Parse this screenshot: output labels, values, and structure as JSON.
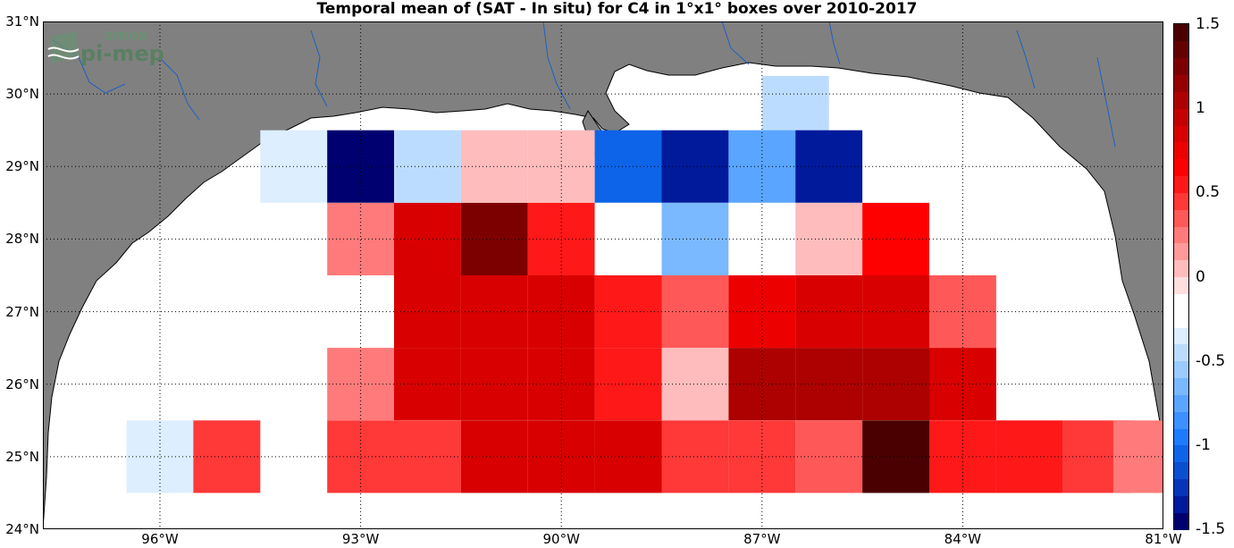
{
  "title": "Temporal mean of (SAT - In situ) for C4 in 1°x1° boxes over 2010-2017",
  "logo": {
    "line1": "smos",
    "line2": "pi-mep"
  },
  "colors": {
    "land": "#808080",
    "coast": "#000000",
    "river": "#1f5fbf",
    "ocean": "#ffffff",
    "grid": "#000000"
  },
  "map": {
    "lon_range": [
      -97.75,
      -81
    ],
    "lat_range": [
      24,
      31
    ],
    "y_ticks": [
      {
        "lat": 31,
        "label": "31°N"
      },
      {
        "lat": 30,
        "label": "30°N"
      },
      {
        "lat": 29,
        "label": "29°N"
      },
      {
        "lat": 28,
        "label": "28°N"
      },
      {
        "lat": 27,
        "label": "27°N"
      },
      {
        "lat": 26,
        "label": "26°N"
      },
      {
        "lat": 25,
        "label": "25°N"
      },
      {
        "lat": 24,
        "label": "24°N"
      }
    ],
    "x_ticks": [
      {
        "lon": -96,
        "label": "96°W"
      },
      {
        "lon": -93,
        "label": "93°W"
      },
      {
        "lon": -90,
        "label": "90°W"
      },
      {
        "lon": -87,
        "label": "87°W"
      },
      {
        "lon": -84,
        "label": "84°W"
      },
      {
        "lon": -81,
        "label": "81°W"
      }
    ]
  },
  "chart_data": {
    "type": "heatmap",
    "title": "Temporal mean of (SAT - In situ) for C4 in 1°x1° boxes over 2010-2017",
    "xlabel": "",
    "ylabel": "",
    "cell_size_deg": 1,
    "color_range": [
      -1.5,
      1.5
    ],
    "cells": [
      {
        "lon": -87.5,
        "lat": 29.75,
        "value": -0.15
      },
      {
        "lon": -86.5,
        "lat": 29.75,
        "value": -0.5
      },
      {
        "lon": -94.0,
        "lat": 29.0,
        "value": -0.4
      },
      {
        "lon": -93.0,
        "lat": 29.0,
        "value": -1.45
      },
      {
        "lon": -92.0,
        "lat": 29.0,
        "value": -0.45
      },
      {
        "lon": -91.0,
        "lat": 29.0,
        "value": 0.0
      },
      {
        "lon": -90.0,
        "lat": 29.0,
        "value": 0.0
      },
      {
        "lon": -89.0,
        "lat": 29.0,
        "value": -1.05
      },
      {
        "lon": -88.0,
        "lat": 29.0,
        "value": -1.4
      },
      {
        "lon": -87.0,
        "lat": 29.0,
        "value": -0.75
      },
      {
        "lon": -86.0,
        "lat": 29.0,
        "value": -1.3
      },
      {
        "lon": -95.0,
        "lat": 28.0,
        "value": -0.2
      },
      {
        "lon": -94.0,
        "lat": 28.0,
        "value": -0.2
      },
      {
        "lon": -93.0,
        "lat": 28.0,
        "value": 0.2
      },
      {
        "lon": -92.0,
        "lat": 28.0,
        "value": 0.8
      },
      {
        "lon": -91.0,
        "lat": 28.0,
        "value": 1.25
      },
      {
        "lon": -90.0,
        "lat": 28.0,
        "value": 0.5
      },
      {
        "lon": -89.0,
        "lat": 28.0,
        "value": -0.15
      },
      {
        "lon": -88.0,
        "lat": 28.0,
        "value": -0.65
      },
      {
        "lon": -87.0,
        "lat": 28.0,
        "value": -0.25
      },
      {
        "lon": -86.0,
        "lat": 28.0,
        "value": 0.0
      },
      {
        "lon": -85.0,
        "lat": 28.0,
        "value": 0.6
      },
      {
        "lon": -92.0,
        "lat": 27.0,
        "value": 0.9
      },
      {
        "lon": -91.0,
        "lat": 27.0,
        "value": 0.9
      },
      {
        "lon": -90.0,
        "lat": 27.0,
        "value": 0.8
      },
      {
        "lon": -89.0,
        "lat": 27.0,
        "value": 0.5
      },
      {
        "lon": -88.0,
        "lat": 27.0,
        "value": 0.3
      },
      {
        "lon": -87.0,
        "lat": 27.0,
        "value": 0.7
      },
      {
        "lon": -86.0,
        "lat": 27.0,
        "value": 0.8
      },
      {
        "lon": -85.0,
        "lat": 27.0,
        "value": 0.8
      },
      {
        "lon": -84.0,
        "lat": 27.0,
        "value": 0.3
      },
      {
        "lon": -93.0,
        "lat": 26.0,
        "value": 0.2
      },
      {
        "lon": -92.0,
        "lat": 26.0,
        "value": 0.9
      },
      {
        "lon": -91.0,
        "lat": 26.0,
        "value": 0.8
      },
      {
        "lon": -90.0,
        "lat": 26.0,
        "value": 0.8
      },
      {
        "lon": -89.0,
        "lat": 26.0,
        "value": 0.5
      },
      {
        "lon": -88.0,
        "lat": 26.0,
        "value": 0.0
      },
      {
        "lon": -87.0,
        "lat": 26.0,
        "value": 1.0
      },
      {
        "lon": -86.0,
        "lat": 26.0,
        "value": 1.05
      },
      {
        "lon": -85.0,
        "lat": 26.0,
        "value": 1.05
      },
      {
        "lon": -84.0,
        "lat": 26.0,
        "value": 0.8
      },
      {
        "lon": -96.0,
        "lat": 25.0,
        "value": -0.4
      },
      {
        "lon": -95.0,
        "lat": 25.0,
        "value": 0.45
      },
      {
        "lon": -93.0,
        "lat": 25.0,
        "value": 0.45
      },
      {
        "lon": -92.0,
        "lat": 25.0,
        "value": 0.45
      },
      {
        "lon": -91.0,
        "lat": 25.0,
        "value": 0.9
      },
      {
        "lon": -90.0,
        "lat": 25.0,
        "value": 0.9
      },
      {
        "lon": -89.0,
        "lat": 25.0,
        "value": 0.9
      },
      {
        "lon": -88.0,
        "lat": 25.0,
        "value": 0.45
      },
      {
        "lon": -87.0,
        "lat": 25.0,
        "value": 0.45
      },
      {
        "lon": -86.0,
        "lat": 25.0,
        "value": 0.3
      },
      {
        "lon": -85.0,
        "lat": 25.0,
        "value": 1.45
      },
      {
        "lon": -84.0,
        "lat": 25.0,
        "value": 0.55
      },
      {
        "lon": -83.0,
        "lat": 25.0,
        "value": 0.55
      },
      {
        "lon": -82.0,
        "lat": 25.0,
        "value": 0.45
      },
      {
        "lon": -81.25,
        "lat": 25.0,
        "value": 0.2
      }
    ]
  },
  "colorbar": {
    "ticks": [
      {
        "value": 1.5,
        "label": "1.5"
      },
      {
        "value": 1.0,
        "label": "1"
      },
      {
        "value": 0.5,
        "label": "0.5"
      },
      {
        "value": 0.0,
        "label": "0"
      },
      {
        "value": -0.5,
        "label": "-0.5"
      },
      {
        "value": -1.0,
        "label": "-1"
      },
      {
        "value": -1.5,
        "label": "-1.5"
      }
    ],
    "colors": [
      "#000070",
      "#001a9c",
      "#0535b8",
      "#0a4fd0",
      "#0d64e8",
      "#1e7bff",
      "#3c90ff",
      "#5aa5ff",
      "#7ab8ff",
      "#9ccbff",
      "#bcdcff",
      "#dceeff",
      "#ffffff",
      "#ffffff",
      "#ffdede",
      "#ffbcbc",
      "#ff9a9a",
      "#ff7a7a",
      "#ff5858",
      "#ff3838",
      "#ff1818",
      "#ff0000",
      "#ec0000",
      "#d80000",
      "#c40000",
      "#ad0000",
      "#960000",
      "#7d0000",
      "#640000",
      "#4a0000"
    ]
  }
}
